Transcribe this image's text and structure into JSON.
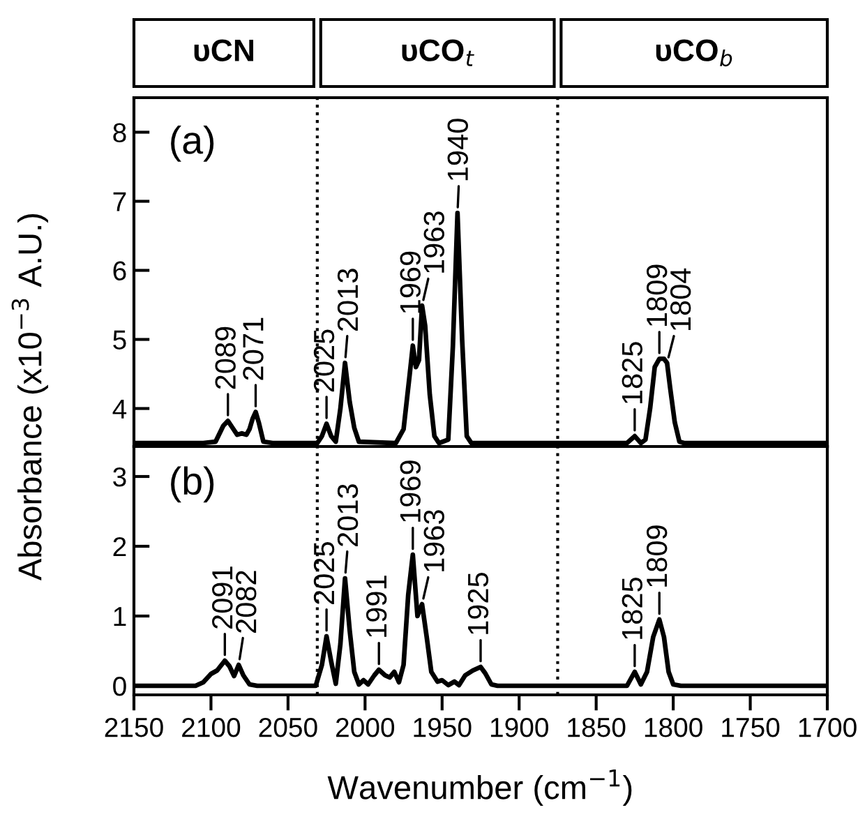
{
  "chart_data": [
    {
      "type": "line",
      "ylabel": "Absorbance (x10$^{−3}$ A.U.)",
      "xlim": [
        2150,
        1700
      ],
      "ylim": [
        3.45,
        8.5
      ],
      "yticks": [
        4,
        5,
        6,
        7,
        8
      ],
      "tick_labels": "y",
      "grid": false,
      "legend": false,
      "marker": "none",
      "line_style": "solid",
      "series": [
        {
          "color": "#000000",
          "x": [
            2150,
            2105,
            2097,
            2092,
            2089,
            2086,
            2083,
            2080,
            2077,
            2075,
            2073,
            2071,
            2069,
            2066,
            2060,
            2031,
            2028,
            2025,
            2022,
            2019,
            2016,
            2013,
            2010,
            2007,
            2004,
            1980,
            1975,
            1971,
            1969,
            1967,
            1965,
            1963,
            1961,
            1958,
            1955,
            1952,
            1946,
            1943,
            1940,
            1937,
            1934,
            1931,
            1830,
            1825,
            1821,
            1818,
            1815,
            1812,
            1809,
            1806,
            1804,
            1802,
            1799,
            1796,
            1793,
            1700
          ],
          "values": [
            3.5,
            3.5,
            3.52,
            3.75,
            3.82,
            3.72,
            3.62,
            3.64,
            3.62,
            3.7,
            3.85,
            3.95,
            3.8,
            3.52,
            3.5,
            3.5,
            3.6,
            3.78,
            3.6,
            3.52,
            4.0,
            4.66,
            4.1,
            3.72,
            3.52,
            3.5,
            3.7,
            4.5,
            4.91,
            4.6,
            4.7,
            5.49,
            5.2,
            4.2,
            3.6,
            3.5,
            3.55,
            4.9,
            6.83,
            5.0,
            3.6,
            3.5,
            3.5,
            3.6,
            3.5,
            3.55,
            4.0,
            4.6,
            4.72,
            4.72,
            4.66,
            4.3,
            3.8,
            3.52,
            3.5,
            3.5
          ]
        }
      ],
      "ref_lines": [
        {
          "axis": "x",
          "value": 2031,
          "color": "#000000",
          "line_style": "dotted"
        },
        {
          "axis": "x",
          "value": 1875,
          "color": "#000000",
          "line_style": "dotted"
        }
      ],
      "annotations": [
        "υCN",
        "υCO$_{t}$",
        "υCO$_{b}$",
        "(a)",
        {
          "text": "2089",
          "x": 2089,
          "y": 3.82
        },
        {
          "text": "2071",
          "x": 2071,
          "y": 3.95
        },
        {
          "text": "2025",
          "x": 2025,
          "y": 3.78
        },
        {
          "text": "2013",
          "x": 2013,
          "y": 4.66
        },
        {
          "text": "1969",
          "x": 1969,
          "y": 4.91
        },
        {
          "text": "1963",
          "x": 1963,
          "y": 5.49
        },
        {
          "text": "1940",
          "x": 1940,
          "y": 6.83
        },
        {
          "text": "1825",
          "x": 1825,
          "y": 3.6
        },
        {
          "text": "1809",
          "x": 1809,
          "y": 4.72
        },
        {
          "text": "1804",
          "x": 1804,
          "y": 4.66
        }
      ]
    },
    {
      "type": "line",
      "xlabel": "Wavenumber (cm$^{−1}$)",
      "xlim": [
        2150,
        1700
      ],
      "ylim": [
        -0.13,
        3.43
      ],
      "xticks": [
        2150,
        2100,
        2050,
        2000,
        1950,
        1900,
        1850,
        1800,
        1750,
        1700
      ],
      "yticks": [
        0,
        1,
        2,
        3
      ],
      "grid": false,
      "legend": false,
      "marker": "none",
      "line_style": "solid",
      "series": [
        {
          "color": "#000000",
          "x": [
            2150,
            2110,
            2105,
            2100,
            2096,
            2091,
            2088,
            2085,
            2082,
            2079,
            2075,
            2070,
            2032,
            2028,
            2025,
            2022,
            2019,
            2016,
            2013,
            2010,
            2007,
            2004,
            2001,
            1998,
            1994,
            1991,
            1987,
            1984,
            1981,
            1978,
            1975,
            1972,
            1969,
            1966,
            1963,
            1960,
            1957,
            1953,
            1950,
            1946,
            1942,
            1939,
            1935,
            1930,
            1925,
            1922,
            1918,
            1914,
            1830,
            1825,
            1821,
            1817,
            1813,
            1809,
            1806,
            1803,
            1800,
            1795,
            1700
          ],
          "values": [
            0,
            0,
            0.05,
            0.17,
            0.22,
            0.36,
            0.28,
            0.14,
            0.3,
            0.15,
            0.02,
            0,
            0,
            0.3,
            0.71,
            0.35,
            0.03,
            0.6,
            1.54,
            0.8,
            0.2,
            0.02,
            0.08,
            0.02,
            0.15,
            0.23,
            0.15,
            0.12,
            0.2,
            0.05,
            0.3,
            1.3,
            1.88,
            1.0,
            1.17,
            0.7,
            0.2,
            0.06,
            0.08,
            0.01,
            0.06,
            0.01,
            0.15,
            0.22,
            0.27,
            0.18,
            0.02,
            0,
            0,
            0.2,
            0.02,
            0.2,
            0.7,
            0.95,
            0.7,
            0.2,
            0.02,
            0,
            0
          ]
        }
      ],
      "ref_lines": [
        {
          "axis": "x",
          "value": 2031,
          "color": "#000000",
          "line_style": "dotted"
        },
        {
          "axis": "x",
          "value": 1875,
          "color": "#000000",
          "line_style": "dotted"
        }
      ],
      "annotations": [
        "(b)",
        {
          "text": "2091",
          "x": 2091,
          "y": 0.36
        },
        {
          "text": "2082",
          "x": 2082,
          "y": 0.3
        },
        {
          "text": "2025",
          "x": 2025,
          "y": 0.71
        },
        {
          "text": "2013",
          "x": 2013,
          "y": 1.54
        },
        {
          "text": "1991",
          "x": 1991,
          "y": 0.23
        },
        {
          "text": "1969",
          "x": 1969,
          "y": 1.88
        },
        {
          "text": "1963",
          "x": 1963,
          "y": 1.17
        },
        {
          "text": "1925",
          "x": 1925,
          "y": 0.27
        },
        {
          "text": "1825",
          "x": 1825,
          "y": 0.2
        },
        {
          "text": "1809",
          "x": 1809,
          "y": 0.95
        }
      ]
    }
  ]
}
